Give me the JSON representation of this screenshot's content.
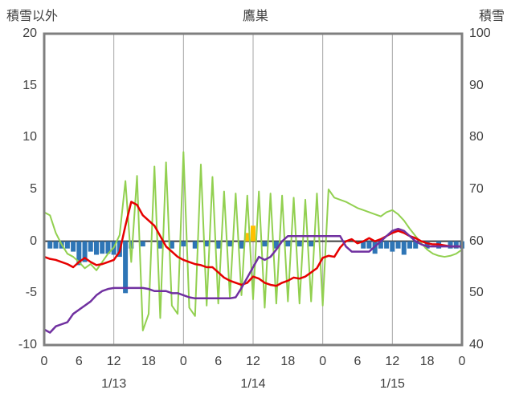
{
  "chart_data": {
    "type": "line",
    "title": "鷹巣",
    "x": {
      "hours_span": 72,
      "tick_step_hours": 6,
      "tick_labels": [
        "0",
        "6",
        "12",
        "18",
        "0",
        "6",
        "12",
        "18",
        "0",
        "6",
        "12",
        "18",
        "0"
      ],
      "date_labels": [
        {
          "label": "1/13",
          "hour": 12
        },
        {
          "label": "1/14",
          "hour": 36
        },
        {
          "label": "1/15",
          "hour": 60
        }
      ]
    },
    "left_axis": {
      "title": "積雪以外",
      "min": -10,
      "max": 20,
      "ticks": [
        20,
        15,
        10,
        5,
        0,
        -5,
        -10
      ]
    },
    "right_axis": {
      "title": "積雪",
      "min": 40,
      "max": 100,
      "ticks": [
        100,
        90,
        80,
        70,
        60,
        50,
        40
      ]
    },
    "gridlines_hours": [
      12,
      24,
      36,
      48,
      60
    ],
    "zero_line_value": 0,
    "grid_on": true,
    "legend": "none",
    "colors": {
      "frame": "#7f7f7f",
      "grid": "#a6a6a6",
      "zero_line": "#404040",
      "text": "#404040",
      "red": "#e60000",
      "purple": "#7030a0",
      "green": "#92d050",
      "blue": "#2e75b6",
      "orange": "#ffc000"
    },
    "series": [
      {
        "name": "blue-bars",
        "type": "bar",
        "color": "#2e75b6",
        "values": [
          0,
          -0.7,
          -0.7,
          -0.7,
          -0.7,
          -1.0,
          -2.3,
          -2.0,
          -1.0,
          -1.3,
          -1.2,
          -1.2,
          -1.3,
          -1.5,
          -5.0,
          -0.7,
          0,
          -0.5,
          0,
          0,
          -0.7,
          0,
          -0.7,
          0,
          -0.5,
          0,
          -0.7,
          0,
          -0.5,
          0,
          -0.7,
          0,
          -0.5,
          0,
          -0.7,
          0,
          0,
          0,
          -0.5,
          0,
          -0.7,
          0,
          -0.5,
          0,
          -0.5,
          0,
          -0.5,
          0,
          0,
          0,
          0,
          0,
          0,
          0,
          0,
          -0.7,
          -0.7,
          -1.2,
          -0.7,
          -0.7,
          -1.0,
          -0.7,
          -1.3,
          -0.7,
          -0.7,
          0,
          -0.7,
          0,
          -0.7,
          0,
          -0.7,
          -0.7,
          -0.7
        ]
      },
      {
        "name": "orange-bars",
        "type": "bar",
        "color": "#ffc000",
        "values": [
          0,
          0,
          0,
          0,
          0,
          0,
          0,
          0,
          0,
          0,
          0,
          0,
          0,
          0,
          0,
          0,
          0,
          0,
          0,
          0,
          0,
          0,
          0,
          0,
          0,
          0,
          0,
          0,
          0,
          0,
          0,
          0,
          0,
          0,
          0,
          0.8,
          1.5,
          0,
          0,
          0,
          0,
          0,
          0,
          0,
          0,
          0,
          0,
          0,
          0,
          0,
          0,
          0,
          0,
          0,
          0,
          0,
          0,
          0,
          0,
          0,
          0,
          0,
          0,
          0,
          0,
          0,
          0,
          0,
          0,
          0,
          0,
          0,
          0
        ]
      },
      {
        "name": "green-line",
        "type": "line",
        "color": "#92d050",
        "width": 2,
        "values": [
          2.8,
          2.5,
          0.8,
          -0.3,
          -1.2,
          -1.5,
          -2.0,
          -2.6,
          -2.2,
          -2.8,
          -2.0,
          -1.2,
          -0.6,
          0.6,
          5.8,
          -2.0,
          6.3,
          -8.6,
          -7.0,
          7.2,
          -7.4,
          7.6,
          -6.2,
          -7.0,
          8.6,
          -6.4,
          -7.2,
          7.4,
          -6.2,
          6.2,
          -6.0,
          4.8,
          -5.4,
          4.6,
          -5.2,
          4.4,
          -5.6,
          4.8,
          -6.4,
          4.6,
          -6.0,
          4.4,
          -5.8,
          4.2,
          -6.0,
          4.0,
          -5.8,
          4.6,
          -6.2,
          5.0,
          4.2,
          4.0,
          3.8,
          3.5,
          3.2,
          3.0,
          2.8,
          2.6,
          2.4,
          2.8,
          3.0,
          2.6,
          2.0,
          1.2,
          0.5,
          -0.2,
          -0.8,
          -1.2,
          -1.4,
          -1.5,
          -1.4,
          -1.2,
          -0.8
        ]
      },
      {
        "name": "red-line",
        "type": "line",
        "color": "#e60000",
        "width": 2.5,
        "values": [
          -1.5,
          -1.7,
          -1.8,
          -2.0,
          -2.2,
          -2.5,
          -2.0,
          -1.6,
          -2.0,
          -2.3,
          -2.2,
          -2.0,
          -1.8,
          -1.0,
          1.5,
          3.8,
          3.5,
          2.5,
          2.0,
          1.5,
          0.5,
          -0.5,
          -1.0,
          -1.5,
          -1.8,
          -2.0,
          -2.2,
          -2.3,
          -2.5,
          -2.5,
          -3.0,
          -3.5,
          -3.8,
          -4.0,
          -4.2,
          -4.0,
          -3.4,
          -3.6,
          -4.0,
          -4.2,
          -4.3,
          -4.0,
          -3.8,
          -3.5,
          -3.6,
          -3.4,
          -3.0,
          -2.6,
          -1.6,
          -1.4,
          -1.5,
          -0.6,
          0.0,
          0.2,
          -0.2,
          0.0,
          0.3,
          0.0,
          0.2,
          0.5,
          0.8,
          1.0,
          0.8,
          0.5,
          0.3,
          0.0,
          -0.2,
          -0.3,
          -0.3,
          -0.4,
          -0.5,
          -0.5,
          -0.5
        ]
      },
      {
        "name": "purple-line",
        "type": "line",
        "color": "#7030a0",
        "width": 2.5,
        "values": [
          -8.5,
          -8.8,
          -8.2,
          -8.0,
          -7.8,
          -7.0,
          -6.6,
          -6.2,
          -5.8,
          -5.2,
          -4.8,
          -4.6,
          -4.5,
          -4.5,
          -4.5,
          -4.5,
          -4.5,
          -4.5,
          -4.6,
          -4.8,
          -4.8,
          -4.8,
          -5.0,
          -5.0,
          -5.2,
          -5.4,
          -5.5,
          -5.5,
          -5.5,
          -5.5,
          -5.5,
          -5.5,
          -5.5,
          -5.4,
          -4.5,
          -3.5,
          -2.5,
          -1.5,
          -1.8,
          -1.5,
          -0.8,
          0.0,
          0.5,
          0.5,
          0.5,
          0.5,
          0.5,
          0.5,
          0.5,
          0.5,
          0.5,
          0.5,
          -0.5,
          -1.0,
          -1.0,
          -1.0,
          -1.0,
          -0.5,
          0.0,
          0.5,
          1.0,
          1.2,
          1.0,
          0.5,
          0.0,
          -0.3,
          -0.5,
          -0.5,
          -0.5,
          -0.5,
          -0.5,
          -0.5,
          -0.5
        ]
      }
    ]
  }
}
